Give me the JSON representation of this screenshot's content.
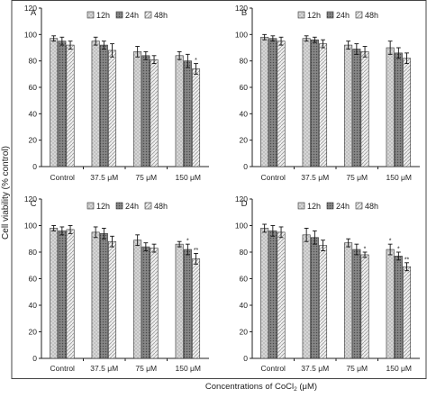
{
  "figure": {
    "ylabel": "Cell viability (% control)",
    "xlabel_prefix": "Concentrations of CoCl",
    "xlabel_sub": "2",
    "xlabel_suffix": " (μM)"
  },
  "chart_data": [
    {
      "type": "bar",
      "panel_label": "A",
      "categories": [
        "Control",
        "37.5 μM",
        "75 μM",
        "150 μM"
      ],
      "series": [
        {
          "name": "12h",
          "values": [
            97,
            95,
            87,
            84
          ],
          "errors": [
            2,
            3,
            4,
            3
          ]
        },
        {
          "name": "24h",
          "values": [
            95,
            92,
            84,
            80
          ],
          "errors": [
            3,
            3,
            3,
            5
          ]
        },
        {
          "name": "48h",
          "values": [
            92,
            88,
            81,
            74
          ],
          "errors": [
            3,
            5,
            3,
            4
          ]
        }
      ],
      "annotations": [
        {
          "category": "150 μM",
          "series": "48h",
          "text": "*"
        }
      ],
      "ylim": [
        0,
        120
      ],
      "yticks": [
        0,
        20,
        40,
        60,
        80,
        100,
        120
      ],
      "legend": "top-center",
      "grid": false
    },
    {
      "type": "bar",
      "panel_label": "B",
      "categories": [
        "Control",
        "37.5 μM",
        "75 μM",
        "150 μM"
      ],
      "series": [
        {
          "name": "12h",
          "values": [
            98,
            97,
            92,
            90
          ],
          "errors": [
            2,
            2,
            3,
            5
          ]
        },
        {
          "name": "24h",
          "values": [
            97,
            96,
            89,
            86
          ],
          "errors": [
            2,
            2,
            4,
            4
          ]
        },
        {
          "name": "48h",
          "values": [
            95,
            93,
            87,
            82
          ],
          "errors": [
            3,
            3,
            4,
            4
          ]
        }
      ],
      "annotations": [],
      "ylim": [
        0,
        120
      ],
      "yticks": [
        0,
        20,
        40,
        60,
        80,
        100,
        120
      ],
      "legend": "top-center",
      "grid": false
    },
    {
      "type": "bar",
      "panel_label": "C",
      "categories": [
        "Control",
        "37.5 μM",
        "75 μM",
        "150 μM"
      ],
      "series": [
        {
          "name": "12h",
          "values": [
            98,
            95,
            89,
            86
          ],
          "errors": [
            2,
            4,
            4,
            2
          ]
        },
        {
          "name": "24h",
          "values": [
            96,
            94,
            84,
            82
          ],
          "errors": [
            3,
            4,
            3,
            4
          ]
        },
        {
          "name": "48h",
          "values": [
            97,
            88,
            83,
            75
          ],
          "errors": [
            3,
            4,
            3,
            4
          ]
        }
      ],
      "annotations": [
        {
          "category": "150 μM",
          "series": "24h",
          "text": "*"
        },
        {
          "category": "150 μM",
          "series": "48h",
          "text": "**"
        }
      ],
      "ylim": [
        0,
        120
      ],
      "yticks": [
        0,
        20,
        40,
        60,
        80,
        100,
        120
      ],
      "legend": "top-center",
      "grid": false
    },
    {
      "type": "bar",
      "panel_label": "D",
      "categories": [
        "Control",
        "37.5 μM",
        "75 μM",
        "150 μM"
      ],
      "series": [
        {
          "name": "12h",
          "values": [
            98,
            93,
            87,
            82
          ],
          "errors": [
            3,
            5,
            3,
            4
          ]
        },
        {
          "name": "24h",
          "values": [
            96,
            91,
            82,
            77
          ],
          "errors": [
            4,
            5,
            4,
            3
          ]
        },
        {
          "name": "48h",
          "values": [
            95,
            85,
            78,
            69
          ],
          "errors": [
            4,
            4,
            2,
            3
          ]
        }
      ],
      "annotations": [
        {
          "category": "75 μM",
          "series": "48h",
          "text": "*"
        },
        {
          "category": "150 μM",
          "series": "12h",
          "text": "*"
        },
        {
          "category": "150 μM",
          "series": "24h",
          "text": "*"
        },
        {
          "category": "150 μM",
          "series": "48h",
          "text": "**"
        }
      ],
      "ylim": [
        0,
        120
      ],
      "yticks": [
        0,
        20,
        40,
        60,
        80,
        100,
        120
      ],
      "legend": "top-center",
      "grid": false
    }
  ]
}
